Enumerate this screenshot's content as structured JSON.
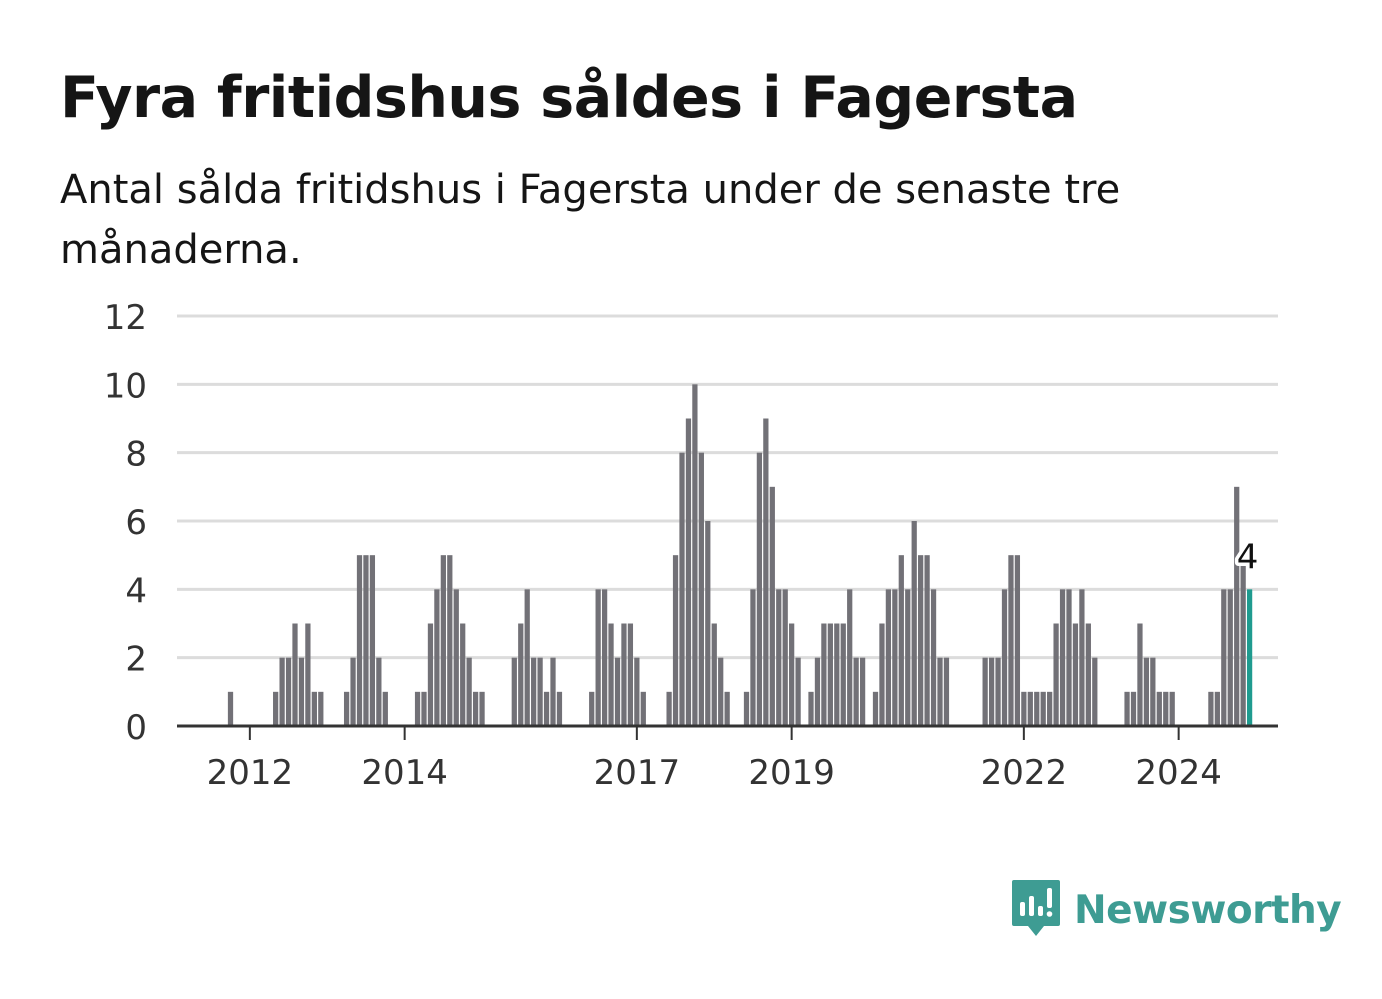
{
  "title": "Fyra fritidshus såldes i Fagersta",
  "subtitle": "Antal sålda fritidshus i Fagersta under de senaste tre månaderna.",
  "brand": {
    "name": "Newsworthy",
    "icon": "newsworthy-logo-icon",
    "color": "#3e9c93"
  },
  "chart_data": {
    "type": "bar",
    "unit": "antal sålda fritidshus (rullande tre månader)",
    "start_month": "2011-01",
    "ylim": [
      0,
      12
    ],
    "yticks": [
      0,
      2,
      4,
      6,
      8,
      10,
      12
    ],
    "xticks": [
      {
        "label": "2012",
        "month": "2012-01"
      },
      {
        "label": "2014",
        "month": "2014-01"
      },
      {
        "label": "2017",
        "month": "2017-01"
      },
      {
        "label": "2019",
        "month": "2019-01"
      },
      {
        "label": "2022",
        "month": "2022-01"
      },
      {
        "label": "2024",
        "month": "2024-01"
      }
    ],
    "grid": true,
    "colors": {
      "bar": "#727177",
      "highlight": "#1f9b8f",
      "grid": "#dcdcdc",
      "axis": "#333333"
    },
    "highlight_label": "4",
    "values": [
      0,
      0,
      0,
      0,
      0,
      0,
      0,
      0,
      0,
      1,
      0,
      0,
      0,
      0,
      0,
      0,
      1,
      2,
      2,
      3,
      2,
      3,
      1,
      1,
      0,
      0,
      0,
      1,
      2,
      5,
      5,
      5,
      2,
      1,
      0,
      0,
      0,
      0,
      1,
      1,
      3,
      4,
      5,
      5,
      4,
      3,
      2,
      1,
      1,
      0,
      0,
      0,
      0,
      2,
      3,
      4,
      2,
      2,
      1,
      2,
      1,
      0,
      0,
      0,
      0,
      1,
      4,
      4,
      3,
      2,
      3,
      3,
      2,
      1,
      0,
      0,
      0,
      1,
      5,
      8,
      9,
      10,
      8,
      6,
      3,
      2,
      1,
      0,
      0,
      1,
      4,
      8,
      9,
      7,
      4,
      4,
      3,
      2,
      0,
      1,
      2,
      3,
      3,
      3,
      3,
      4,
      2,
      2,
      0,
      1,
      3,
      4,
      4,
      5,
      4,
      6,
      5,
      5,
      4,
      2,
      2,
      0,
      0,
      0,
      0,
      0,
      2,
      2,
      2,
      4,
      5,
      5,
      1,
      1,
      1,
      1,
      1,
      3,
      4,
      4,
      3,
      4,
      3,
      2,
      0,
      0,
      0,
      0,
      1,
      1,
      3,
      2,
      2,
      1,
      1,
      1,
      0,
      0,
      0,
      0,
      0,
      1,
      1,
      4,
      4,
      7,
      5,
      4
    ]
  }
}
